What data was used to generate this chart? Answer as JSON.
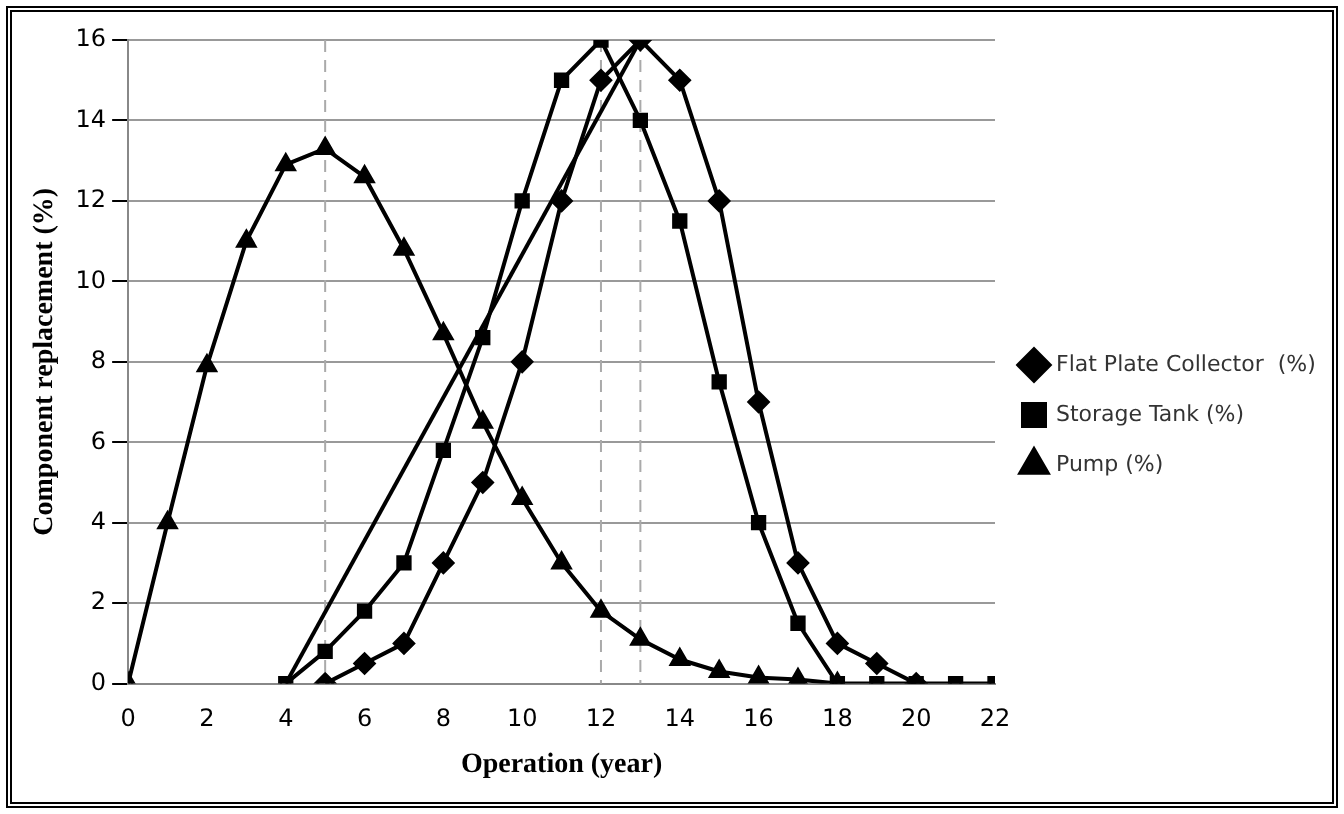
{
  "chart_data": {
    "type": "line",
    "xlabel": "Operation (year)",
    "ylabel": "Component replacement (%)",
    "xlim": [
      0,
      22
    ],
    "xticks": [
      0,
      2,
      4,
      6,
      8,
      10,
      12,
      14,
      16,
      18,
      20,
      22
    ],
    "ylim": [
      0,
      16
    ],
    "yticks": [
      0,
      2,
      4,
      6,
      8,
      10,
      12,
      14,
      16
    ],
    "grid": "y",
    "legend": "right",
    "line_style": "solid",
    "series": [
      {
        "name": "Flat Plate Collector  (%)",
        "color": "#000000",
        "marker": "diamond",
        "x": [
          5,
          6,
          7,
          8,
          9,
          10,
          11,
          12,
          13,
          14,
          15,
          16,
          17,
          18,
          19,
          20
        ],
        "values": [
          0,
          0.5,
          1,
          3,
          5,
          8,
          12,
          15,
          16,
          15,
          12,
          7,
          3,
          1,
          0.5,
          0
        ]
      },
      {
        "name": "Storage Tank (%)",
        "color": "#000000",
        "marker": "square",
        "x": [
          4,
          5,
          6,
          7,
          8,
          9,
          10,
          11,
          12,
          13,
          14,
          15,
          16,
          17,
          18,
          19,
          20,
          21,
          22
        ],
        "values": [
          0,
          0.8,
          1.8,
          3,
          5.8,
          8.6,
          12,
          15,
          16,
          14,
          11.5,
          7.5,
          4,
          1.5,
          0,
          0,
          0,
          0,
          0
        ]
      },
      {
        "name": "Pump (%)",
        "color": "#000000",
        "marker": "triangle",
        "x": [
          0,
          1,
          2,
          3,
          4,
          5,
          6,
          7,
          8,
          9,
          10,
          11,
          12,
          13,
          14,
          15,
          16,
          17,
          18
        ],
        "values": [
          0,
          4,
          7.9,
          11,
          12.9,
          13.3,
          12.6,
          10.8,
          8.7,
          6.5,
          4.6,
          3,
          1.8,
          1.1,
          0.6,
          0.3,
          0.15,
          0.1,
          0
        ]
      },
      {
        "color": "#000000",
        "marker": "none",
        "x": [
          4,
          13
        ],
        "values": [
          0,
          16
        ]
      }
    ],
    "ref_lines": [
      {
        "axis": "x",
        "value": 5,
        "color": "#aaaaaa",
        "line_style": "dashed"
      },
      {
        "axis": "x",
        "value": 12,
        "color": "#aaaaaa",
        "line_style": "dashed"
      },
      {
        "axis": "x",
        "value": 13,
        "color": "#aaaaaa",
        "line_style": "dashed"
      }
    ]
  }
}
